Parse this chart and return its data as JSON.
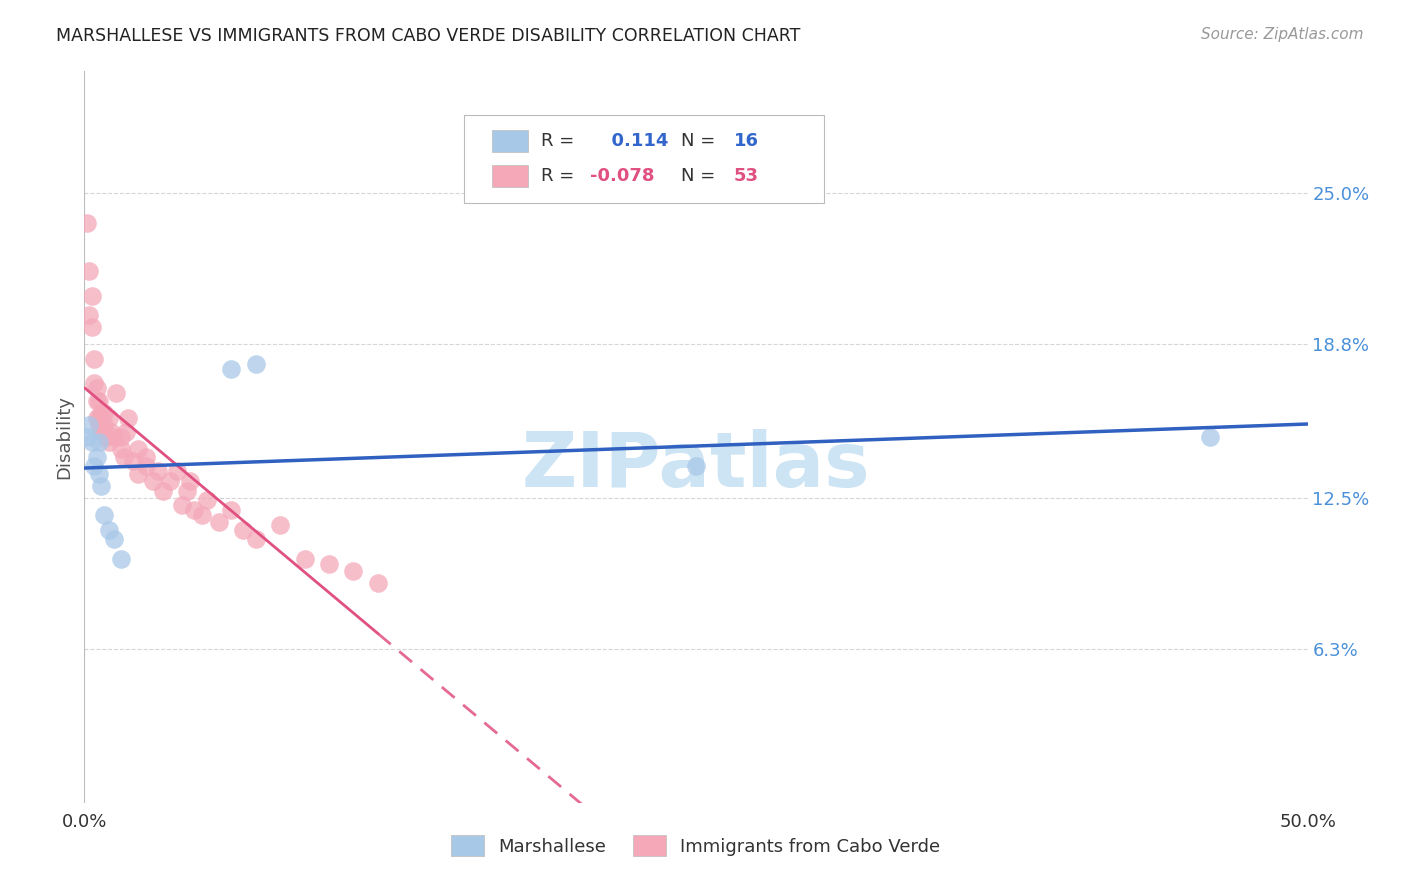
{
  "title": "MARSHALLESE VS IMMIGRANTS FROM CABO VERDE DISABILITY CORRELATION CHART",
  "source": "Source: ZipAtlas.com",
  "ylabel": "Disability",
  "right_yticks": [
    "25.0%",
    "18.8%",
    "12.5%",
    "6.3%"
  ],
  "right_ytick_vals": [
    0.25,
    0.188,
    0.125,
    0.063
  ],
  "xlim": [
    0.0,
    0.5
  ],
  "ylim": [
    0.0,
    0.3
  ],
  "marshallese_R": 0.114,
  "marshallese_N": 16,
  "cabo_verde_R": -0.078,
  "cabo_verde_N": 53,
  "blue_color": "#a8c8e8",
  "pink_color": "#f4a8b8",
  "blue_line_color": "#3060c0",
  "pink_line_color": "#e05080",
  "marshallese_x": [
    0.001,
    0.002,
    0.003,
    0.004,
    0.005,
    0.006,
    0.006,
    0.007,
    0.008,
    0.01,
    0.012,
    0.015,
    0.06,
    0.07,
    0.25,
    0.46
  ],
  "marshallese_y": [
    0.15,
    0.155,
    0.148,
    0.138,
    0.142,
    0.148,
    0.135,
    0.13,
    0.118,
    0.112,
    0.108,
    0.1,
    0.178,
    0.18,
    0.138,
    0.15
  ],
  "cabo_verde_x": [
    0.001,
    0.002,
    0.002,
    0.003,
    0.003,
    0.004,
    0.004,
    0.005,
    0.005,
    0.005,
    0.006,
    0.006,
    0.006,
    0.007,
    0.007,
    0.008,
    0.008,
    0.009,
    0.01,
    0.01,
    0.011,
    0.012,
    0.013,
    0.015,
    0.015,
    0.016,
    0.017,
    0.018,
    0.02,
    0.022,
    0.022,
    0.025,
    0.025,
    0.028,
    0.03,
    0.032,
    0.035,
    0.038,
    0.04,
    0.042,
    0.043,
    0.045,
    0.048,
    0.05,
    0.055,
    0.06,
    0.065,
    0.07,
    0.08,
    0.09,
    0.1,
    0.11,
    0.12
  ],
  "cabo_verde_y": [
    0.238,
    0.218,
    0.2,
    0.195,
    0.208,
    0.182,
    0.172,
    0.165,
    0.17,
    0.158,
    0.155,
    0.165,
    0.158,
    0.152,
    0.16,
    0.155,
    0.16,
    0.15,
    0.148,
    0.158,
    0.152,
    0.15,
    0.168,
    0.15,
    0.145,
    0.142,
    0.152,
    0.158,
    0.14,
    0.135,
    0.145,
    0.142,
    0.138,
    0.132,
    0.136,
    0.128,
    0.132,
    0.136,
    0.122,
    0.128,
    0.132,
    0.12,
    0.118,
    0.124,
    0.115,
    0.12,
    0.112,
    0.108,
    0.114,
    0.1,
    0.098,
    0.095,
    0.09
  ],
  "background_color": "#ffffff",
  "grid_color": "#cccccc",
  "watermark_text": "ZIPatlas",
  "watermark_color": "#cce4f4"
}
